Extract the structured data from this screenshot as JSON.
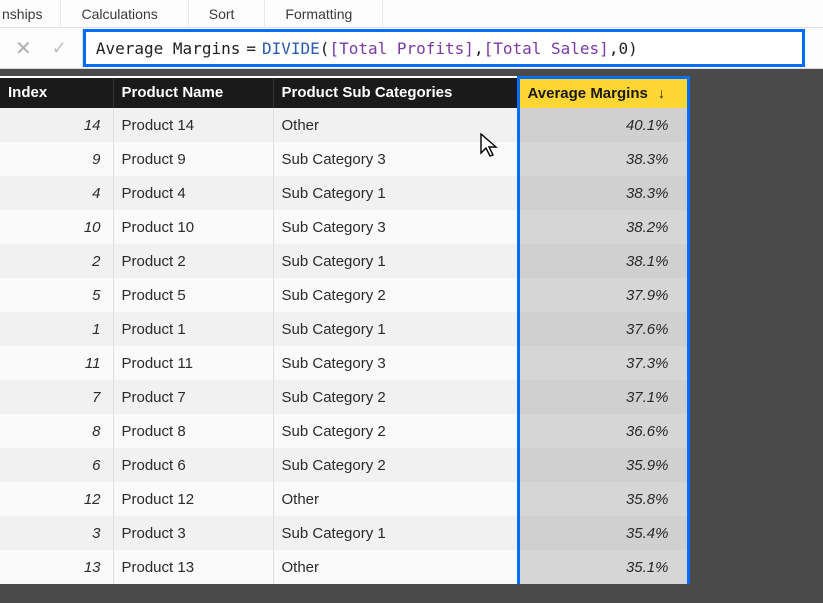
{
  "ribbon": {
    "items": [
      "nships",
      "Calculations",
      "Sort",
      "Formatting"
    ]
  },
  "formula": {
    "measure_name": "Average Margins",
    "equals": " = ",
    "func": "DIVIDE",
    "open": "( ",
    "arg1": "[Total Profits]",
    "sep1": ", ",
    "arg2": "[Total Sales]",
    "sep2": ", ",
    "arg3": "0",
    "close": " )"
  },
  "table": {
    "columns": {
      "index": "Index",
      "product_name": "Product Name",
      "sub_cat": "Product Sub Categories",
      "avg_margins": "Average Margins"
    },
    "sort_indicator": "↓",
    "rows": [
      {
        "index": "14",
        "name": "Product 14",
        "sub": "Other",
        "avg": "40.1%"
      },
      {
        "index": "9",
        "name": "Product 9",
        "sub": "Sub Category 3",
        "avg": "38.3%"
      },
      {
        "index": "4",
        "name": "Product 4",
        "sub": "Sub Category 1",
        "avg": "38.3%"
      },
      {
        "index": "10",
        "name": "Product 10",
        "sub": "Sub Category 3",
        "avg": "38.2%"
      },
      {
        "index": "2",
        "name": "Product 2",
        "sub": "Sub Category 1",
        "avg": "38.1%"
      },
      {
        "index": "5",
        "name": "Product 5",
        "sub": "Sub Category 2",
        "avg": "37.9%"
      },
      {
        "index": "1",
        "name": "Product 1",
        "sub": "Sub Category 1",
        "avg": "37.6%"
      },
      {
        "index": "11",
        "name": "Product 11",
        "sub": "Sub Category 3",
        "avg": "37.3%"
      },
      {
        "index": "7",
        "name": "Product 7",
        "sub": "Sub Category 2",
        "avg": "37.1%"
      },
      {
        "index": "8",
        "name": "Product 8",
        "sub": "Sub Category 2",
        "avg": "36.6%"
      },
      {
        "index": "6",
        "name": "Product 6",
        "sub": "Sub Category 2",
        "avg": "35.9%"
      },
      {
        "index": "12",
        "name": "Product 12",
        "sub": "Other",
        "avg": "35.8%"
      },
      {
        "index": "3",
        "name": "Product 3",
        "sub": "Sub Category 1",
        "avg": "35.4%"
      },
      {
        "index": "13",
        "name": "Product 13",
        "sub": "Other",
        "avg": "35.1%"
      }
    ]
  },
  "colors": {
    "highlight_border": "#006eff",
    "highlight_header_bg": "#ffd633",
    "table_header_bg": "#1a1a1a",
    "highlight_cell_bg": "#d0d0d0"
  }
}
